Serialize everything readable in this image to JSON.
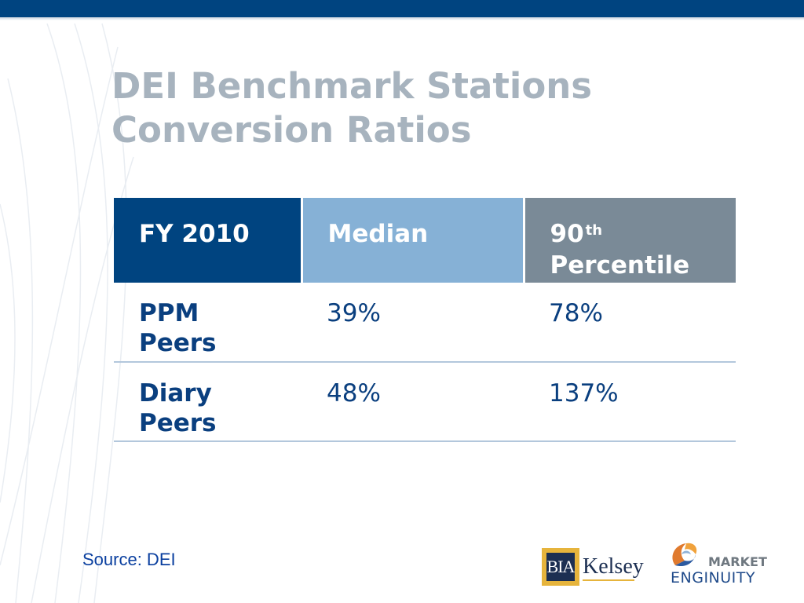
{
  "slide": {
    "title_line1": "DEI Benchmark Stations",
    "title_line2": "Conversion Ratios"
  },
  "table": {
    "headers": {
      "col1": "FY 2010",
      "col2": "Median",
      "col3_main": "90",
      "col3_sup": "th",
      "col3_rest": "Percentile"
    },
    "rows": [
      {
        "label": "PPM Peers",
        "median": "39%",
        "p90": "78%"
      },
      {
        "label": "Diary Peers",
        "median": "48%",
        "p90": "137%"
      }
    ]
  },
  "source": "Source: DEI",
  "logos": {
    "bia_box": "BIA",
    "bia_name": "Kelsey",
    "me_line1": "MARKET",
    "me_line2": "ENGINUITY"
  },
  "colors": {
    "top_bar": "#004480",
    "header_fy": "#004480",
    "header_median": "#86b1d6",
    "header_percentile": "#7a8a97",
    "title": "#a7b3be",
    "cell_text": "#0a3f7f"
  }
}
